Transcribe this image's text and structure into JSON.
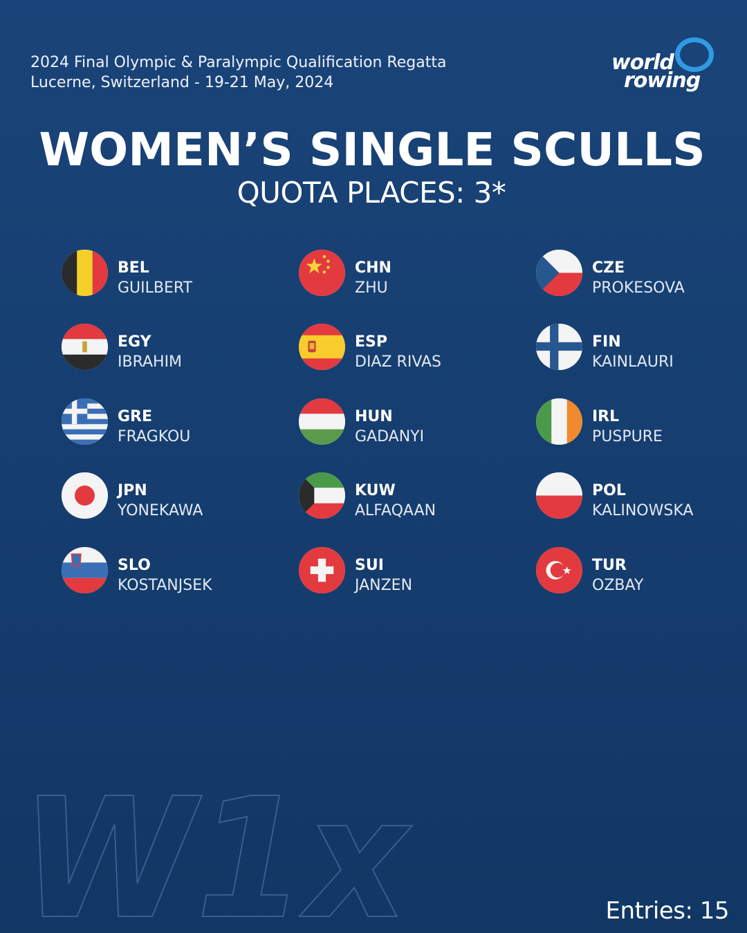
{
  "event": {
    "line1": "2024 Final Olympic & Paralympic Qualification Regatta",
    "line2": "Lucerne, Switzerland - 19-21 May, 2024"
  },
  "logo": {
    "word1": "world",
    "word2": "rowing",
    "icon": "world-rowing-logo"
  },
  "title": "WOMEN’S SINGLE SCULLS",
  "subtitle": "QUOTA PLACES: 3*",
  "entries": [
    {
      "code": "BEL",
      "name": "GUILBERT",
      "flag": "belgium-flag-icon"
    },
    {
      "code": "CHN",
      "name": "ZHU",
      "flag": "china-flag-icon"
    },
    {
      "code": "CZE",
      "name": "PROKESOVA",
      "flag": "czechia-flag-icon"
    },
    {
      "code": "EGY",
      "name": "IBRAHIM",
      "flag": "egypt-flag-icon"
    },
    {
      "code": "ESP",
      "name": "DIAZ RIVAS",
      "flag": "spain-flag-icon"
    },
    {
      "code": "FIN",
      "name": "KAINLAURI",
      "flag": "finland-flag-icon"
    },
    {
      "code": "GRE",
      "name": "FRAGKOU",
      "flag": "greece-flag-icon"
    },
    {
      "code": "HUN",
      "name": "GADANYI",
      "flag": "hungary-flag-icon"
    },
    {
      "code": "IRL",
      "name": "PUSPURE",
      "flag": "ireland-flag-icon"
    },
    {
      "code": "JPN",
      "name": "YONEKAWA",
      "flag": "japan-flag-icon"
    },
    {
      "code": "KUW",
      "name": "ALFAQAAN",
      "flag": "kuwait-flag-icon"
    },
    {
      "code": "POL",
      "name": "KALINOWSKA",
      "flag": "poland-flag-icon"
    },
    {
      "code": "SLO",
      "name": "KOSTANJSEK",
      "flag": "slovenia-flag-icon"
    },
    {
      "code": "SUI",
      "name": "JANZEN",
      "flag": "switzerland-flag-icon"
    },
    {
      "code": "TUR",
      "name": "OZBAY",
      "flag": "turkey-flag-icon"
    }
  ],
  "boat_class": "W1x",
  "entries_count": "Entries: 15",
  "colors": {
    "background": "#163e70",
    "accent": "#2f9be4"
  }
}
